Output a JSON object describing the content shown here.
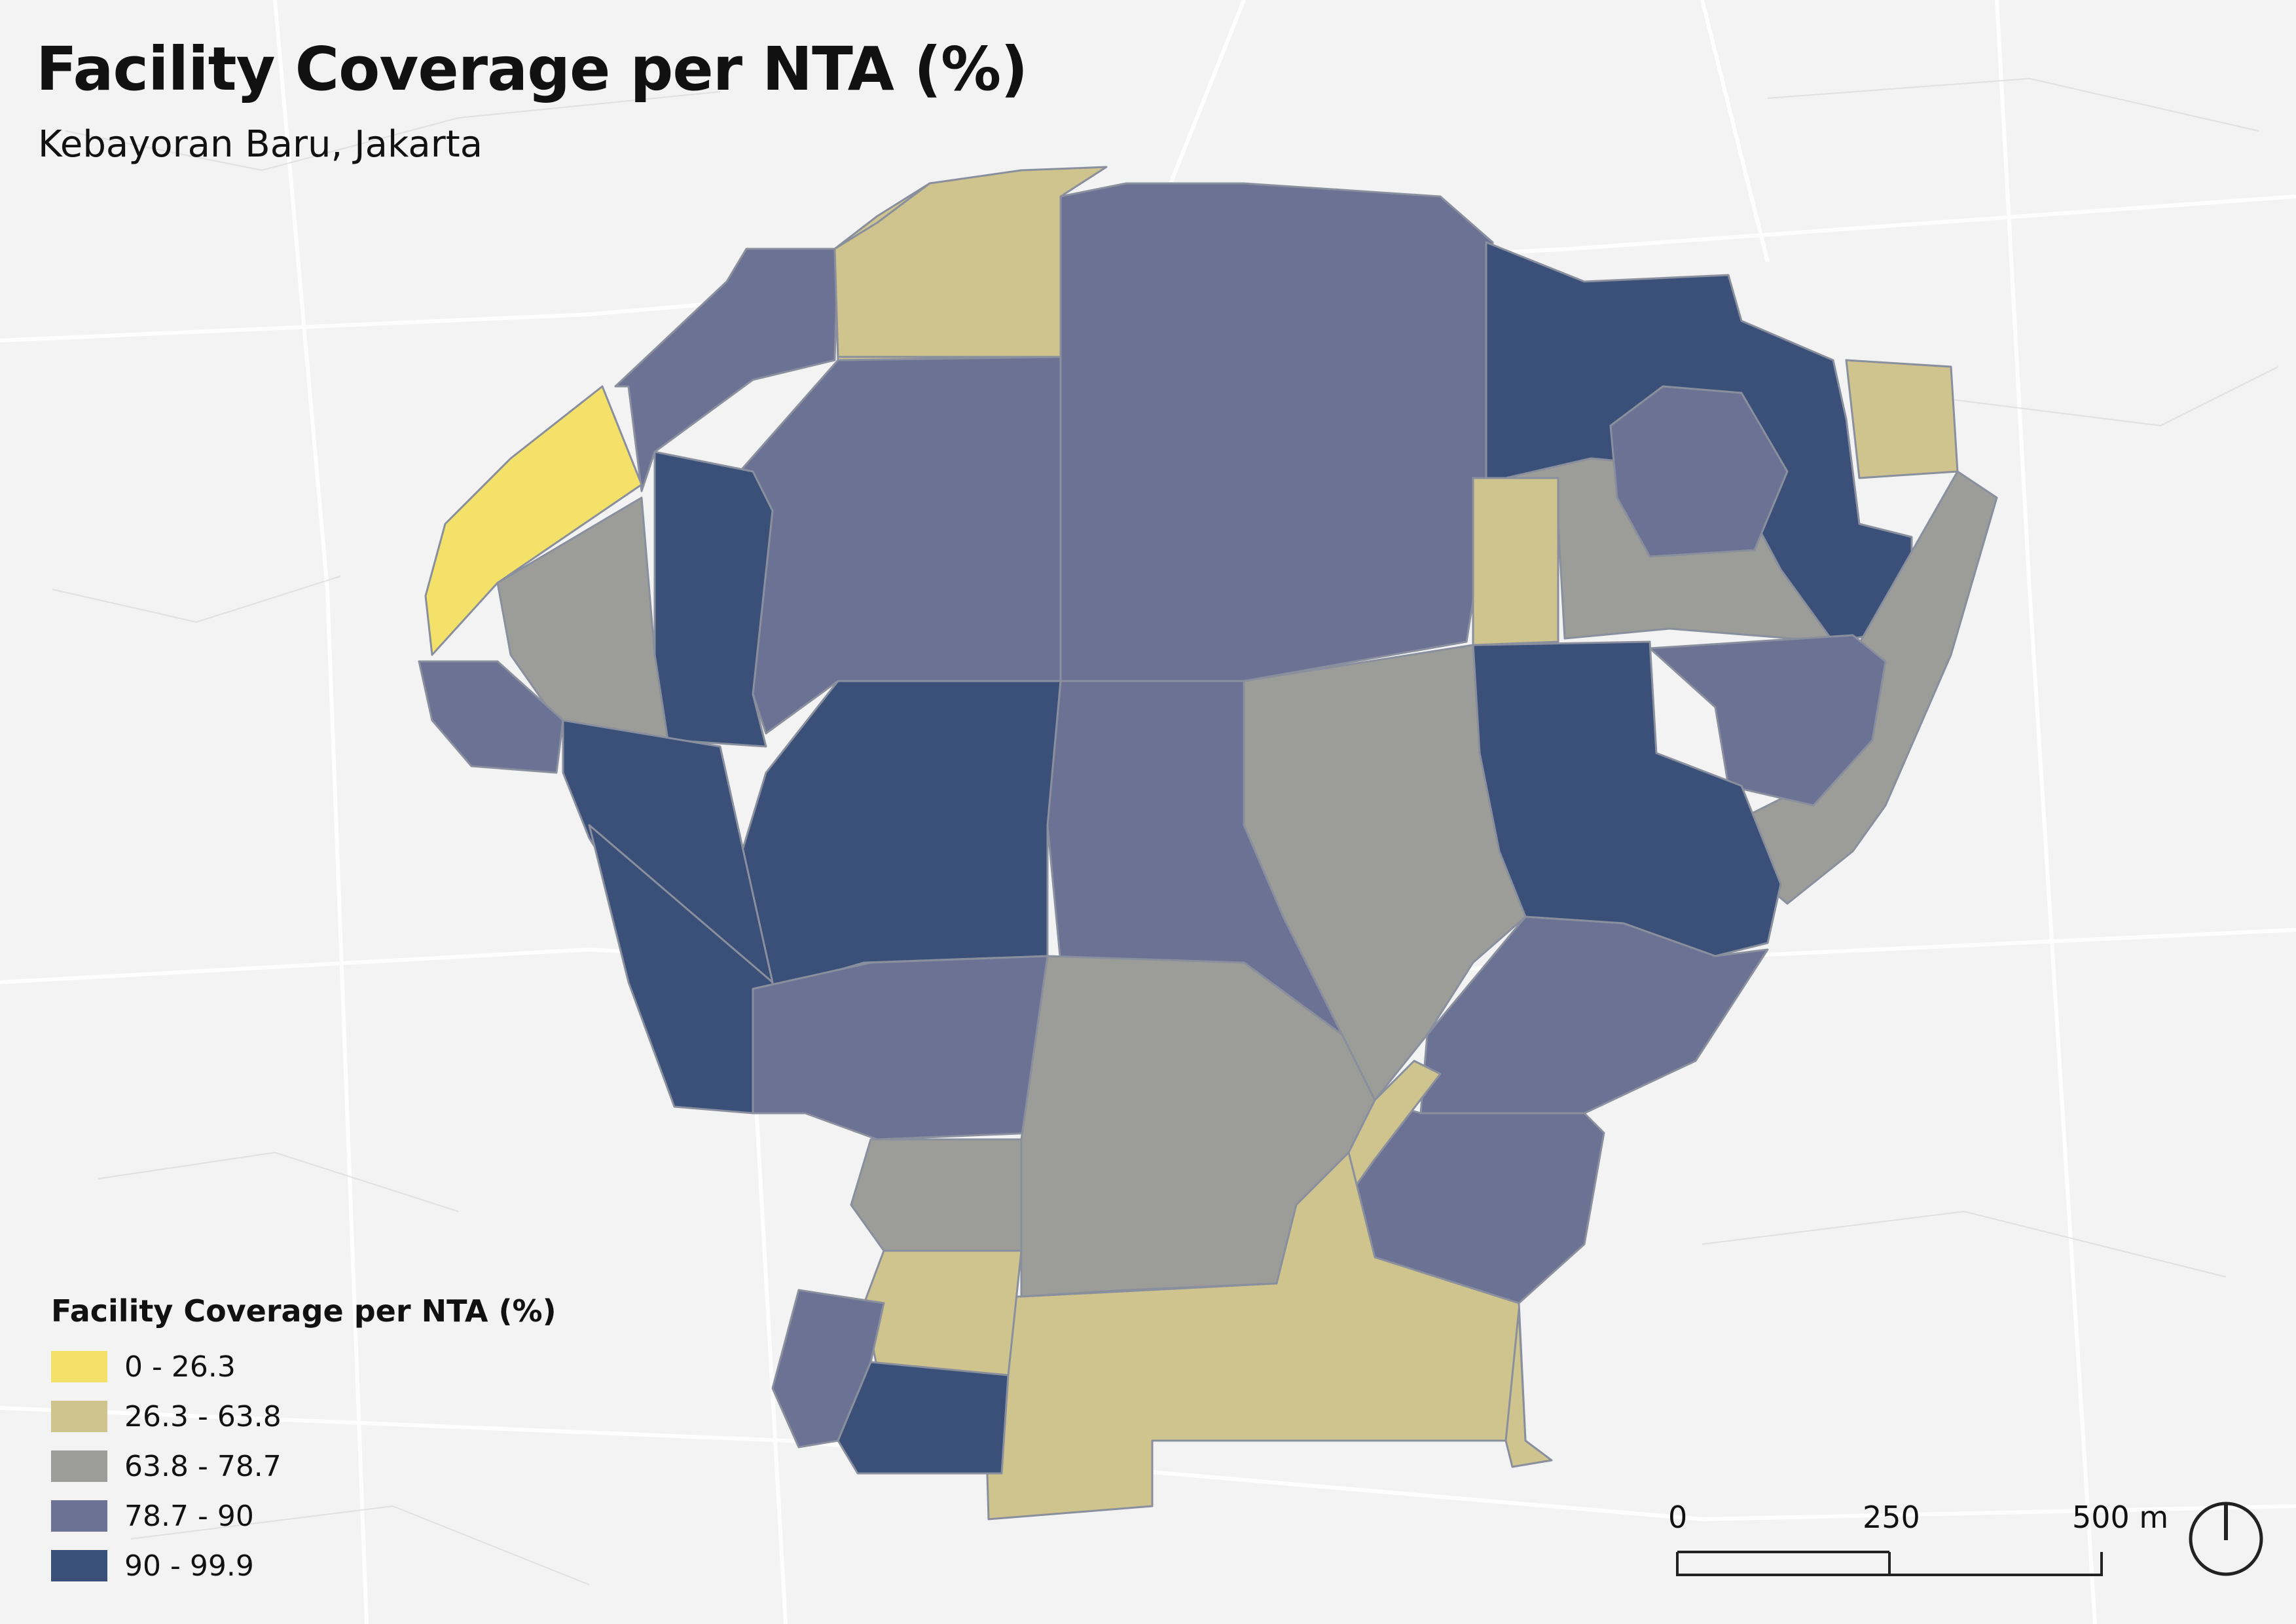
{
  "title": "Facility Coverage per NTA (%)",
  "subtitle": "Kebayoran Baru, Jakarta",
  "legend": {
    "title": "Facility Coverage per NTA (%)",
    "items": [
      {
        "label": "0 - 26.3",
        "color": "#f3e16a"
      },
      {
        "label": "26.3 - 63.8",
        "color": "#cfc48e"
      },
      {
        "label": "63.8 - 78.7",
        "color": "#9c9c98"
      },
      {
        "label": "78.7 - 90",
        "color": "#6c7294"
      },
      {
        "label": "90 - 99.9",
        "color": "#3a5078"
      }
    ]
  },
  "scalebar": {
    "labels": [
      "0",
      "250",
      "500 m"
    ]
  },
  "map_regions": [
    {
      "class": 1,
      "name": "far-west-yellow"
    },
    {
      "class": 2,
      "name": "north-blok-h"
    },
    {
      "class": 2,
      "name": "east-strip"
    },
    {
      "class": 2,
      "name": "mid-east-strip"
    },
    {
      "class": 2,
      "name": "south-blok-p"
    },
    {
      "class": 2,
      "name": "south-west-small"
    },
    {
      "class": 3,
      "name": "west-blok-c"
    },
    {
      "class": 3,
      "name": "east-edge"
    },
    {
      "class": 3,
      "name": "east-inner"
    },
    {
      "class": 3,
      "name": "center-east-blok-l"
    },
    {
      "class": 3,
      "name": "south-blok-m"
    },
    {
      "class": 3,
      "name": "south-west-blok-r"
    },
    {
      "class": 4,
      "name": "north-west"
    },
    {
      "class": 4,
      "name": "north-center"
    },
    {
      "class": 4,
      "name": "center"
    },
    {
      "class": 4,
      "name": "south-east"
    },
    {
      "class": 4,
      "name": "west-inner"
    },
    {
      "class": 4,
      "name": "south-west-tab"
    },
    {
      "class": 4,
      "name": "south-center-blok-n"
    },
    {
      "class": 5,
      "name": "west-blok-e"
    },
    {
      "class": 5,
      "name": "north-east"
    },
    {
      "class": 5,
      "name": "east-blok-b"
    },
    {
      "class": 5,
      "name": "south-west-corner"
    },
    {
      "class": 5,
      "name": "west-column"
    },
    {
      "class": 5,
      "name": "east-blok-k"
    }
  ]
}
